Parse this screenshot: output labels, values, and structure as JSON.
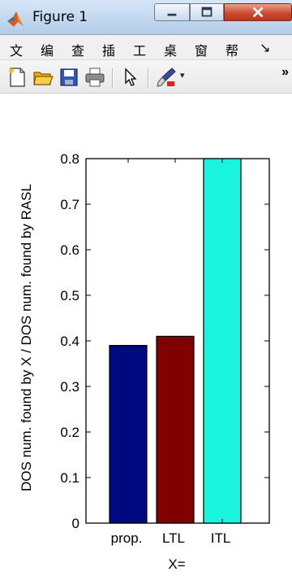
{
  "window": {
    "title": "Figure 1",
    "icon": "matlab-icon",
    "controls": [
      "minimize-icon",
      "maximize-icon",
      "close-icon"
    ]
  },
  "menu": {
    "items": [
      "文",
      "编",
      "查",
      "插",
      "工",
      "桌",
      "窗",
      "帮"
    ],
    "overflow": "↘"
  },
  "toolbar": {
    "tools": [
      "new-figure-icon",
      "open-file-icon",
      "save-icon",
      "print-icon",
      "pointer-icon",
      "brush-icon"
    ],
    "overflow": "»"
  },
  "chart_data": {
    "type": "bar",
    "categories": [
      "prop.",
      "LTL",
      "ITL"
    ],
    "values": [
      0.39,
      0.41,
      0.8
    ],
    "colors": [
      "#000a80",
      "#800000",
      "#19f4dc"
    ],
    "xlabel": "X=",
    "ylabel": "DOS num. found by X / DOS num. found by RASL",
    "ylim": [
      0,
      0.8
    ],
    "yticks": [
      "0",
      "0.1",
      "0.2",
      "0.3",
      "0.4",
      "0.5",
      "0.6",
      "0.7",
      "0.8"
    ],
    "grid": false,
    "legend": "none"
  }
}
